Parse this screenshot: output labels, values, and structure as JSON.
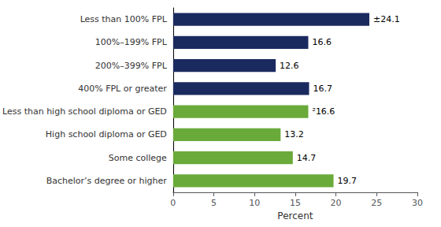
{
  "chart_data": {
    "type": "bar",
    "orientation": "horizontal",
    "categories": [
      "Less than 100% FPL",
      "100%–199% FPL",
      "200%–399% FPL",
      "400% FPL or greater",
      "Less than high school diploma or GED",
      "High school diploma or GED",
      "Some college",
      "Bachelor’s degree or higher"
    ],
    "values": [
      24.1,
      16.6,
      12.6,
      16.7,
      16.6,
      13.2,
      14.7,
      19.7
    ],
    "value_labels": [
      "±24.1",
      "16.6",
      "12.6",
      "16.7",
      "²16.6",
      "13.2",
      "14.7",
      "19.7"
    ],
    "colors": [
      "#1b2a5e",
      "#1b2a5e",
      "#1b2a5e",
      "#1b2a5e",
      "#6aaa3a",
      "#6aaa3a",
      "#6aaa3a",
      "#6aaa3a"
    ],
    "data_labels": true,
    "xlabel": "Percent",
    "xlim": [
      0,
      30
    ],
    "xticks": [
      0,
      5,
      10,
      15,
      20,
      25,
      30
    ],
    "grid": false
  }
}
